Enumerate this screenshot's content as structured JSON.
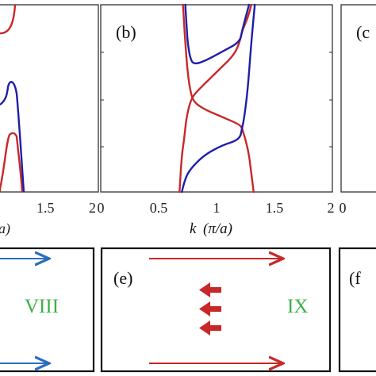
{
  "chart_data": [
    {
      "panel": "a",
      "type": "line",
      "label": "",
      "xlim": [
        0,
        2
      ],
      "x_ticks": [
        "1.5",
        "2"
      ],
      "xlabel_fragment": "a)",
      "note": "panel cropped at left edge of image"
    },
    {
      "panel": "b",
      "type": "line",
      "label": "(b)",
      "xlim": [
        0,
        2
      ],
      "x_ticks": [
        "0",
        "0.5",
        "1",
        "1.5",
        "2"
      ],
      "xlabel": "k (π/a)",
      "series": [
        {
          "color": "#c82828",
          "segments": [
            [
              [
                1.3,
                1.0
              ],
              [
                1.27,
                0.93
              ],
              [
                1.22,
                0.86
              ],
              [
                1.2,
                0.8
              ],
              [
                1.15,
                0.73
              ],
              [
                1.0,
                0.64
              ],
              [
                0.85,
                0.55
              ],
              [
                0.78,
                0.5
              ],
              [
                0.74,
                0.4
              ],
              [
                0.72,
                0.28
              ],
              [
                0.7,
                0.2
              ],
              [
                0.68,
                0.0
              ]
            ],
            [
              [
                1.32,
                0.0
              ],
              [
                1.3,
                0.1
              ],
              [
                1.28,
                0.2
              ],
              [
                1.25,
                0.28
              ],
              [
                1.23,
                0.32
              ],
              [
                1.22,
                0.34
              ],
              [
                1.2,
                0.36
              ],
              [
                1.05,
                0.4
              ],
              [
                0.9,
                0.44
              ],
              [
                0.8,
                0.48
              ],
              [
                0.77,
                0.55
              ],
              [
                0.75,
                0.64
              ],
              [
                0.73,
                0.8
              ],
              [
                0.72,
                0.9
              ],
              [
                0.71,
                1.0
              ]
            ]
          ]
        },
        {
          "color": "#1e1ea8",
          "segments": [
            [
              [
                1.28,
                1.0
              ],
              [
                1.25,
                0.93
              ],
              [
                1.22,
                0.86
              ],
              [
                1.2,
                0.8
              ],
              [
                1.05,
                0.75
              ],
              [
                0.9,
                0.7
              ],
              [
                0.8,
                0.68
              ],
              [
                0.77,
                0.72
              ],
              [
                0.75,
                0.8
              ],
              [
                0.74,
                0.9
              ],
              [
                0.73,
                1.0
              ]
            ],
            [
              [
                0.7,
                0.0
              ],
              [
                0.72,
                0.05
              ],
              [
                0.75,
                0.1
              ],
              [
                0.8,
                0.14
              ],
              [
                0.9,
                0.2
              ],
              [
                1.05,
                0.25
              ],
              [
                1.2,
                0.28
              ],
              [
                1.22,
                0.34
              ],
              [
                1.24,
                0.4
              ],
              [
                1.27,
                0.55
              ],
              [
                1.3,
                0.8
              ],
              [
                1.33,
                1.0
              ]
            ]
          ]
        }
      ]
    },
    {
      "panel": "c",
      "type": "line",
      "label": "(c",
      "x_ticks": [
        "0"
      ],
      "note": "panel cropped at right edge of image"
    }
  ],
  "panel_a": {
    "tick_15": "1.5",
    "tick_2": "2",
    "xlabel_fragment": "a)"
  },
  "panel_b": {
    "label": "(b)",
    "tick_0": "0",
    "tick_05": "0.5",
    "tick_1": "1",
    "tick_15": "1.5",
    "tick_2": "2",
    "xlabel_k": "k",
    "xlabel_rest": "(π/a)"
  },
  "panel_c": {
    "label": "(c",
    "tick_0": "0"
  },
  "panel_d": {
    "roman": "VIII",
    "arrow_color": "#2a6fbf",
    "text_color": "#3cb04a"
  },
  "panel_e": {
    "label": "(e)",
    "roman": "IX",
    "arrow_color": "#c82828",
    "text_color": "#3cb04a"
  },
  "panel_f": {
    "label": "(f"
  },
  "colors": {
    "red": "#c82828",
    "blue": "#1e1ea8",
    "green_text": "#3cb04a",
    "arrow_blue": "#2a6fbf"
  }
}
